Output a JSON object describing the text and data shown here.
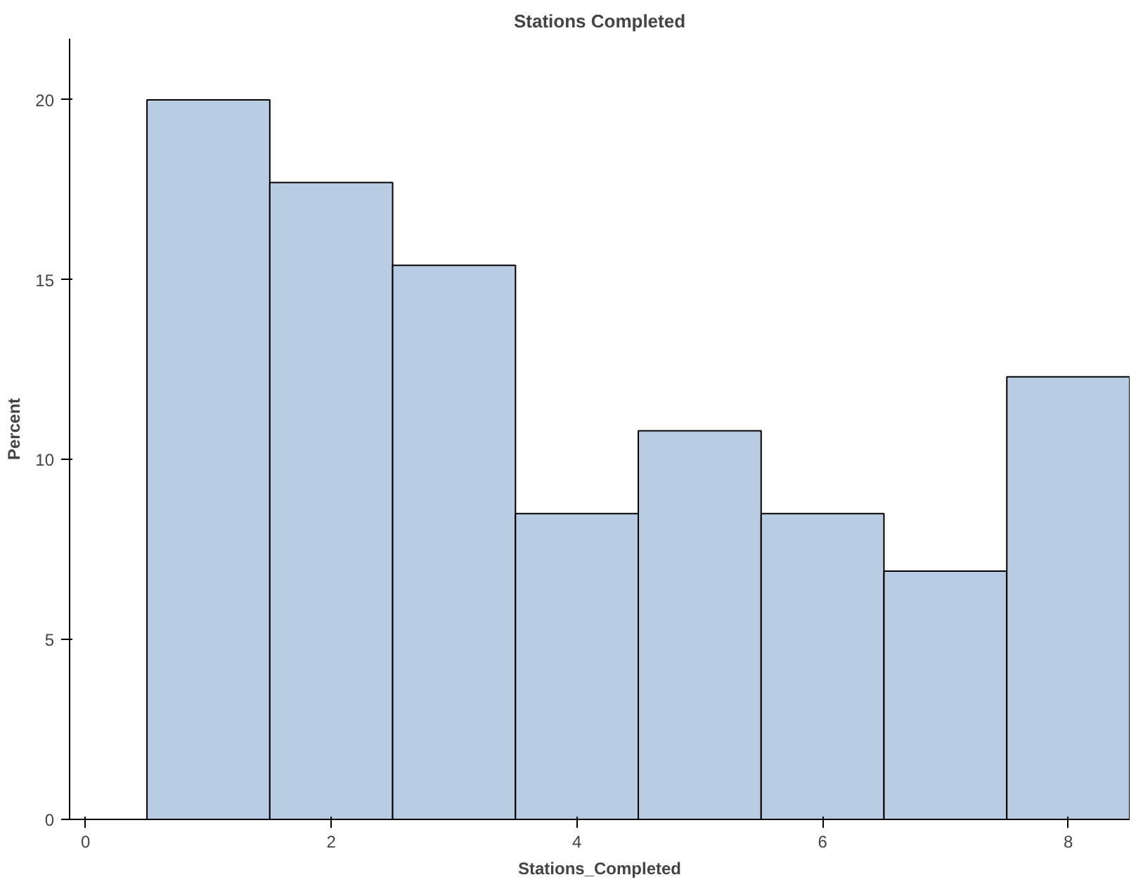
{
  "chart_data": {
    "type": "histogram",
    "title": "Stations Completed",
    "xlabel": "Stations_Completed",
    "ylabel": "Percent",
    "bins": [
      0.5,
      1.5,
      2.5,
      3.5,
      4.5,
      5.5,
      6.5,
      7.5,
      8.5
    ],
    "values": [
      20,
      17.7,
      15.4,
      8.5,
      10.8,
      8.5,
      6.9,
      12.3
    ],
    "color": "#b8cce4",
    "xlim": [
      -0.13,
      8.5
    ],
    "xticks": [
      0,
      2,
      4,
      6,
      8
    ],
    "ylim": [
      0,
      21.7
    ],
    "yticks": [
      0,
      5,
      10,
      15,
      20
    ],
    "grid": false
  }
}
